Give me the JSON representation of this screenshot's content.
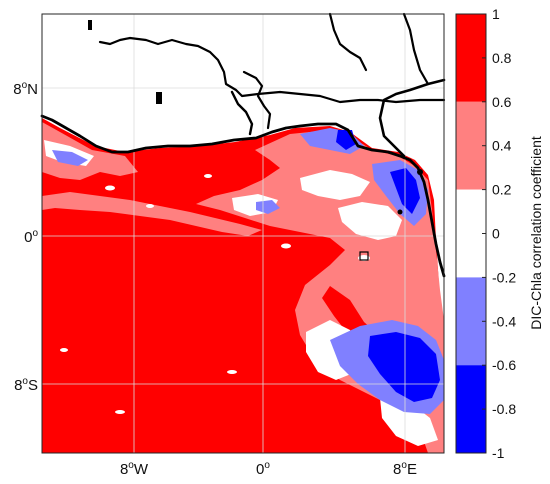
{
  "map": {
    "lat_ticks": [
      {
        "main": "8",
        "sup": "o",
        "hemi": "N"
      },
      {
        "main": "0",
        "sup": "o",
        "hemi": ""
      },
      {
        "main": "8",
        "sup": "o",
        "hemi": "S"
      }
    ],
    "lon_ticks": [
      {
        "main": "8",
        "sup": "o",
        "hemi": "W"
      },
      {
        "main": "0",
        "sup": "o",
        "hemi": ""
      },
      {
        "main": "8",
        "sup": "o",
        "hemi": "E"
      }
    ],
    "grid": true
  },
  "colorbar": {
    "label": "DIC-Chla correlation coefficient",
    "ticks": [
      "1",
      "0.8",
      "0.6",
      "0.4",
      "0.2",
      "0",
      "-0.2",
      "-0.4",
      "-0.6",
      "-0.8",
      "-1"
    ],
    "levels": [
      {
        "range": "0.6 to 1",
        "color": "#ff0000"
      },
      {
        "range": "0.2 to 0.6",
        "color": "#ff8080"
      },
      {
        "range": "-0.2 to 0.2",
        "color": "#ffffff"
      },
      {
        "range": "-0.6 to -0.2",
        "color": "#8080ff"
      },
      {
        "range": "-1 to -0.6",
        "color": "#0000ff"
      }
    ]
  },
  "colors": {
    "land": "#ffffff",
    "coastline": "#000000",
    "grid": "#dcdcdc"
  }
}
